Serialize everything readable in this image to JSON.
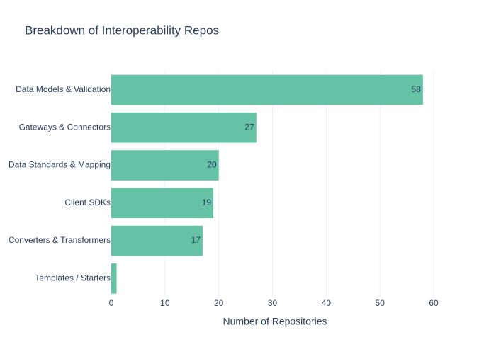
{
  "chart_data": {
    "type": "bar",
    "orientation": "horizontal",
    "title": "Breakdown of Interoperability Repos",
    "x_label": "Number of Repositories",
    "categories": [
      "Data Models & Validation",
      "Gateways & Connectors",
      "Data Standards & Mapping",
      "Client SDKs",
      "Converters & Transformers",
      "Templates / Starters"
    ],
    "values": [
      58,
      27,
      20,
      19,
      17,
      1
    ],
    "color": "#66c2a5",
    "xlim": [
      0,
      61.05
    ],
    "xticks": [
      0,
      10,
      20,
      30,
      40,
      50,
      60
    ],
    "grid": true
  }
}
